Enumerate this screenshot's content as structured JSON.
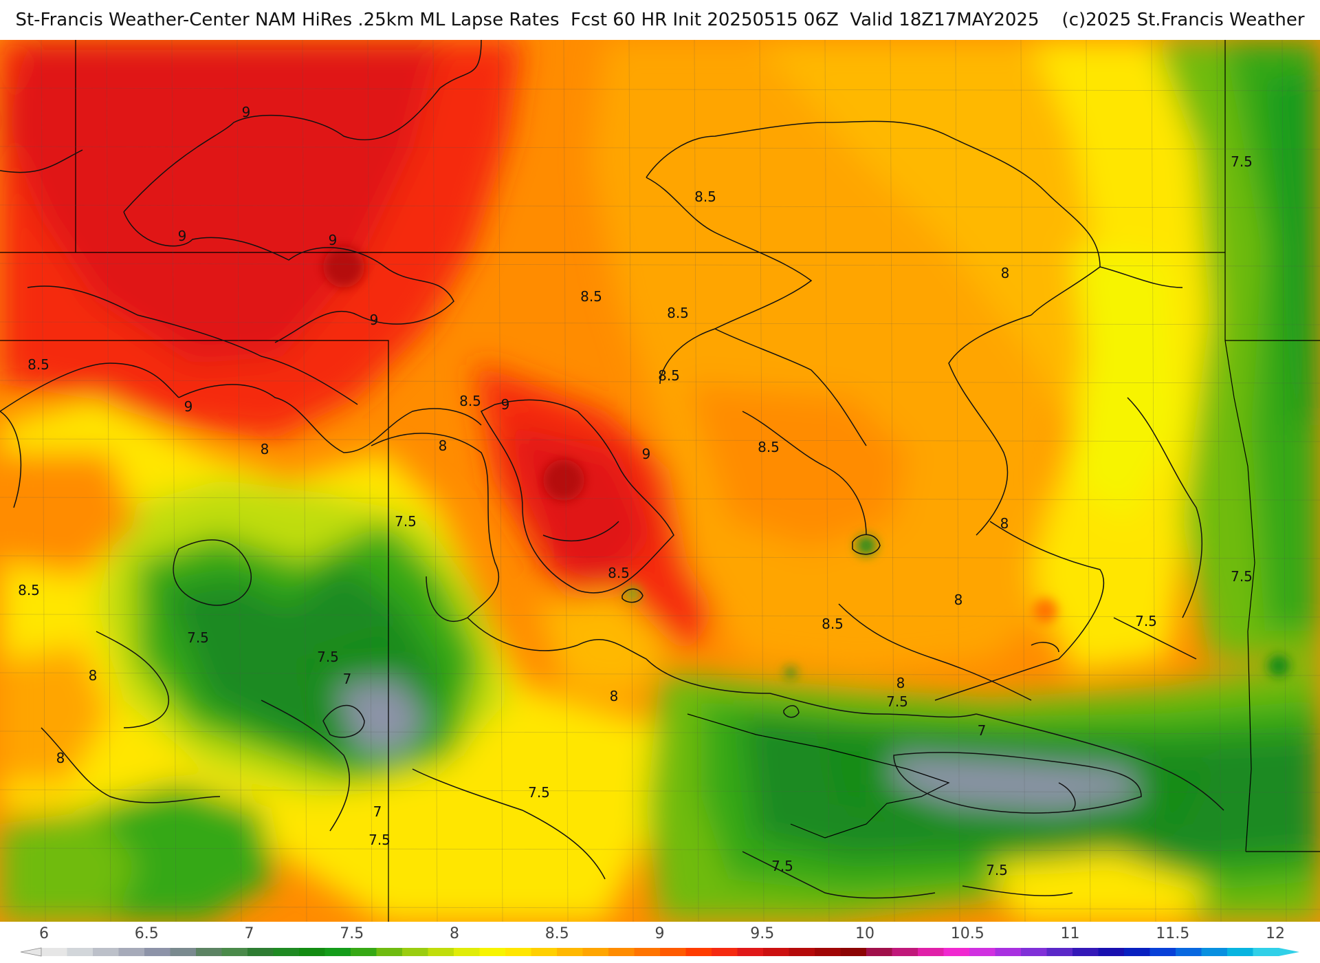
{
  "header": {
    "title": "St-Francis Weather-Center NAM HiRes .25km ML Lapse Rates  Fcst 60 HR Init 20250515 06Z  Valid 18Z17MAY2025    (c)2025 St.Francis Weather"
  },
  "colors": {
    "background_field": "#ff8c00",
    "boundary_line": "#000000",
    "contour_line": "#111111"
  },
  "map": {
    "contour_labels": [
      "9",
      "9",
      "9",
      "9",
      "9",
      "9",
      "9",
      "8.5",
      "8.5",
      "8.5",
      "8.5",
      "8.5",
      "8.5",
      "8.5",
      "8.5",
      "8.5",
      "8.5",
      "8",
      "8",
      "8",
      "8",
      "8",
      "8",
      "8",
      "8",
      "8",
      "7.5",
      "7.5",
      "7.5",
      "7.5",
      "7.5",
      "7.5",
      "7.5",
      "7.5",
      "7.5",
      "7.5",
      "7.5",
      "7",
      "7",
      "7"
    ]
  },
  "colorbar": {
    "ticks": [
      "6",
      "6.5",
      "7",
      "7.5",
      "8",
      "8.5",
      "9",
      "9.5",
      "10",
      "10.5",
      "11",
      "11.5",
      "12"
    ],
    "colors": [
      "#e6e6e6",
      "#d2d6da",
      "#bcc0c9",
      "#a6aab9",
      "#8d93a8",
      "#7a8a8f",
      "#5c8363",
      "#4a8a4a",
      "#2e7d32",
      "#1f8a23",
      "#128c12",
      "#149c1a",
      "#36a815",
      "#6fbb10",
      "#9acd10",
      "#c0dd0a",
      "#e0ec08",
      "#f7f400",
      "#ffe600",
      "#ffd000",
      "#ffb800",
      "#ffa500",
      "#ff8c00",
      "#ff7400",
      "#ff5a00",
      "#ff3c00",
      "#f52a10",
      "#e01818",
      "#cc1010",
      "#b50a0a",
      "#a00606",
      "#8c0404",
      "#a0104a",
      "#c0187a",
      "#e020a8",
      "#f028d0",
      "#d030e0",
      "#a830e0",
      "#8030d8",
      "#5a28c8",
      "#3418b8",
      "#1810b0",
      "#0820c0",
      "#0840d8",
      "#0868e0",
      "#0890e0",
      "#08b4e0",
      "#30d0e8"
    ]
  }
}
